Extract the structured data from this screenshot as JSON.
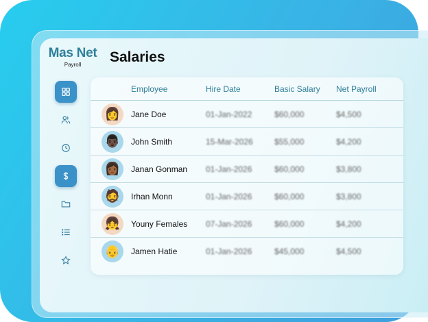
{
  "app": {
    "name": "Mas Net",
    "subtitle": "Payroll"
  },
  "page": {
    "title": "Salaries"
  },
  "sidebar": {
    "items": [
      {
        "icon": "grid-icon",
        "active": true
      },
      {
        "icon": "users-icon",
        "active": false
      },
      {
        "icon": "clock-icon",
        "active": false
      },
      {
        "icon": "dollar-icon",
        "active": true
      },
      {
        "icon": "folder-icon",
        "active": false
      },
      {
        "icon": "list-icon",
        "active": false
      },
      {
        "icon": "star-icon",
        "active": false
      }
    ]
  },
  "table": {
    "columns": [
      "Employee",
      "Hire Date",
      "Basic Salary",
      "Net Payroll"
    ],
    "rows": [
      {
        "name": "Jane Doe",
        "hire_date": "01-Jan-2022",
        "basic_salary": "$60,000",
        "net_payroll": "$4,500"
      },
      {
        "name": "John Smith",
        "hire_date": "15-Mar-2026",
        "basic_salary": "$55,000",
        "net_payroll": "$4,200"
      },
      {
        "name": "Janan Gonman",
        "hire_date": "01-Jan-2026",
        "basic_salary": "$60,000",
        "net_payroll": "$3,800"
      },
      {
        "name": "Irhan Monn",
        "hire_date": "01-Jan-2026",
        "basic_salary": "$60,000",
        "net_payroll": "$3,800"
      },
      {
        "name": "Youny Females",
        "hire_date": "07-Jan-2026",
        "basic_salary": "$60,000",
        "net_payroll": "$4,200"
      },
      {
        "name": "Jamen Hatie",
        "hire_date": "01-Jan-2026",
        "basic_salary": "$45,000",
        "net_payroll": "$4,500"
      }
    ]
  }
}
